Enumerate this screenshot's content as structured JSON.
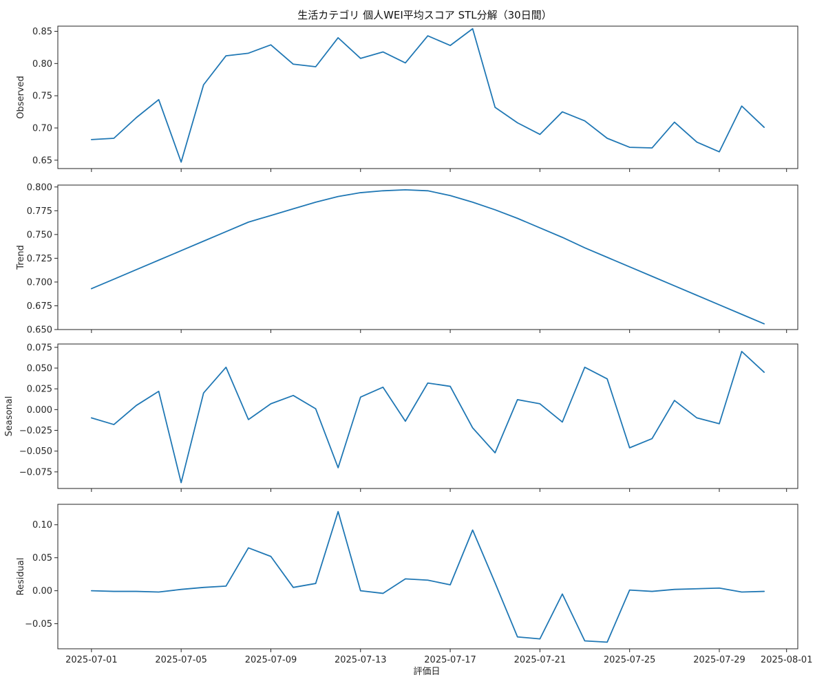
{
  "chart_data": {
    "type": "line",
    "title": "生活カテゴリ 個人WEI平均スコア STL分解（30日間）",
    "xlabel": "評価日",
    "line_color": "#1f77b4",
    "x": [
      "2025-07-01",
      "2025-07-02",
      "2025-07-03",
      "2025-07-04",
      "2025-07-05",
      "2025-07-06",
      "2025-07-07",
      "2025-07-08",
      "2025-07-09",
      "2025-07-10",
      "2025-07-11",
      "2025-07-12",
      "2025-07-13",
      "2025-07-14",
      "2025-07-15",
      "2025-07-16",
      "2025-07-17",
      "2025-07-18",
      "2025-07-19",
      "2025-07-20",
      "2025-07-21",
      "2025-07-22",
      "2025-07-23",
      "2025-07-24",
      "2025-07-25",
      "2025-07-26",
      "2025-07-27",
      "2025-07-28",
      "2025-07-29",
      "2025-07-30",
      "2025-07-31"
    ],
    "xticks": [
      "2025-07-01",
      "2025-07-05",
      "2025-07-09",
      "2025-07-13",
      "2025-07-17",
      "2025-07-21",
      "2025-07-25",
      "2025-07-29",
      "2025-08-01"
    ],
    "xlim": [
      "2025-06-29 12:00",
      "2025-08-01 12:00"
    ],
    "subplots": [
      {
        "ylabel": "Observed",
        "ylim": [
          0.637,
          0.858
        ],
        "yticks": [
          0.65,
          0.7,
          0.75,
          0.8,
          0.85
        ],
        "tick_labels": [
          "0.65",
          "0.70",
          "0.75",
          "0.80",
          "0.85"
        ],
        "values": [
          0.682,
          0.684,
          0.716,
          0.744,
          0.647,
          0.767,
          0.812,
          0.816,
          0.829,
          0.799,
          0.795,
          0.84,
          0.808,
          0.818,
          0.801,
          0.843,
          0.828,
          0.854,
          0.732,
          0.708,
          0.69,
          0.725,
          0.711,
          0.684,
          0.67,
          0.669,
          0.709,
          0.678,
          0.663,
          0.734,
          0.701
        ]
      },
      {
        "ylabel": "Trend",
        "ylim": [
          0.65,
          0.802
        ],
        "yticks": [
          0.65,
          0.675,
          0.7,
          0.725,
          0.75,
          0.775,
          0.8
        ],
        "tick_labels": [
          "0.650",
          "0.675",
          "0.700",
          "0.725",
          "0.750",
          "0.775",
          "0.800"
        ],
        "values": [
          0.693,
          0.703,
          0.713,
          0.723,
          0.733,
          0.743,
          0.753,
          0.763,
          0.77,
          0.777,
          0.784,
          0.79,
          0.794,
          0.796,
          0.797,
          0.796,
          0.791,
          0.784,
          0.776,
          0.767,
          0.757,
          0.747,
          0.736,
          0.726,
          0.716,
          0.706,
          0.696,
          0.686,
          0.676,
          0.666,
          0.656
        ]
      },
      {
        "ylabel": "Seasonal",
        "ylim": [
          -0.095,
          0.079
        ],
        "yticks": [
          -0.075,
          -0.05,
          -0.025,
          0.0,
          0.025,
          0.05,
          0.075
        ],
        "tick_labels": [
          "−0.075",
          "−0.050",
          "−0.025",
          "0.000",
          "0.025",
          "0.050",
          "0.075"
        ],
        "values": [
          -0.01,
          -0.018,
          0.005,
          0.022,
          -0.088,
          0.02,
          0.051,
          -0.012,
          0.007,
          0.017,
          0.001,
          -0.07,
          0.015,
          0.027,
          -0.014,
          0.032,
          0.028,
          -0.022,
          -0.052,
          0.012,
          0.007,
          -0.015,
          0.051,
          0.037,
          -0.046,
          -0.035,
          0.011,
          -0.01,
          -0.017,
          0.07,
          0.045
        ]
      },
      {
        "ylabel": "Residual",
        "ylim": [
          -0.088,
          0.131
        ],
        "yticks": [
          -0.05,
          0.0,
          0.05,
          0.1
        ],
        "tick_labels": [
          "−0.05",
          "0.00",
          "0.05",
          "0.10"
        ],
        "values": [
          0.0,
          -0.001,
          -0.001,
          -0.002,
          0.002,
          0.005,
          0.007,
          0.065,
          0.052,
          0.005,
          0.011,
          0.12,
          0.0,
          -0.004,
          0.018,
          0.016,
          0.009,
          0.092,
          0.012,
          -0.07,
          -0.073,
          -0.005,
          -0.076,
          -0.078,
          0.001,
          -0.001,
          0.002,
          0.003,
          0.004,
          -0.002,
          -0.001
        ]
      }
    ]
  }
}
